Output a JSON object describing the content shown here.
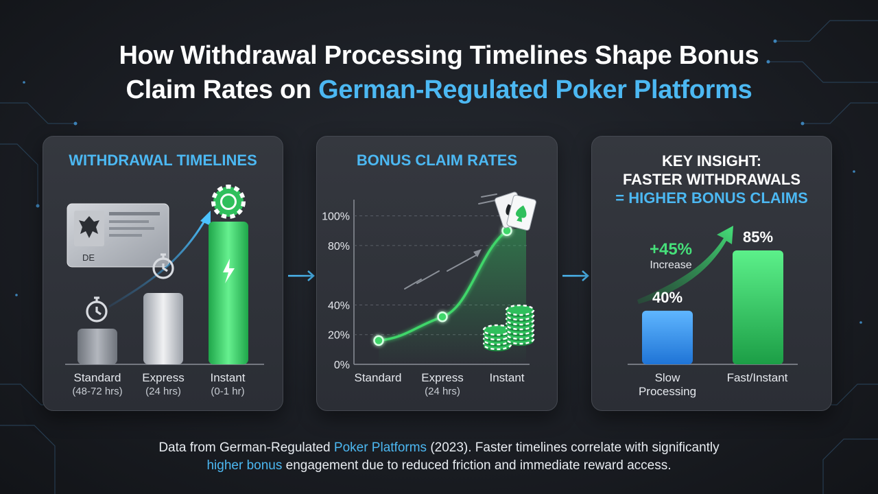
{
  "title": {
    "line1": "How Withdrawal Processing Timelines Shape Bonus",
    "line2_plain": "Claim Rates on ",
    "line2_highlight": "German-Regulated Poker Platforms"
  },
  "colors": {
    "accent_blue": "#4cb8f2",
    "accent_green": "#3fd66a",
    "panel_bg": "#31343b",
    "page_bg": "#1b1e24"
  },
  "panel_withdrawal": {
    "title": "WITHDRAWAL TIMELINES",
    "id_card_text": "DE",
    "icons": [
      "german-id-card-icon",
      "stopwatch-icon",
      "poker-chip-icon",
      "lightning-bolt-icon",
      "trend-arrow-icon"
    ],
    "chart_data": {
      "type": "bar",
      "categories": [
        "Standard",
        "Express",
        "Instant"
      ],
      "category_sublabels": [
        "(48-72 hrs)",
        "(24 hrs)",
        "(0-1 hr)"
      ],
      "values": [
        1,
        2,
        4
      ],
      "value_note": "relative bar heights (no axis shown)",
      "colors": [
        "#9aa0a8",
        "#d7dadf",
        "#3fd66a"
      ]
    }
  },
  "panel_claims": {
    "title": "BONUS CLAIM RATES",
    "icons": [
      "playing-cards-icon",
      "chip-stack-icon",
      "speed-lines-icon"
    ],
    "chart_data": {
      "type": "line",
      "categories": [
        "Standard",
        "Express",
        "Instant"
      ],
      "category_sublabels": [
        "",
        "(24 hrs)",
        ""
      ],
      "values": [
        16,
        32,
        90
      ],
      "y_tick_labels": [
        "0%",
        "20%",
        "40%",
        "80%",
        "100%"
      ],
      "y_tick_values": [
        0,
        20,
        40,
        80,
        100
      ],
      "ylim": [
        0,
        110
      ],
      "grid": true,
      "line_color": "#3fd66a"
    }
  },
  "panel_insight": {
    "title_line1": "KEY INSIGHT:",
    "title_line2": "FASTER WITHDRAWALS",
    "title_line3": "= HIGHER BONUS CLAIMS",
    "increase_value": "+45%",
    "increase_label": "Increase",
    "chart_data": {
      "type": "bar",
      "categories": [
        "Slow\nProcessing",
        "Fast/Instant"
      ],
      "category_lines": [
        [
          "Slow",
          "Processing"
        ],
        [
          "Fast/Instant"
        ]
      ],
      "values": [
        40,
        85
      ],
      "value_labels": [
        "40%",
        "85%"
      ],
      "colors": [
        "#3f9ff0",
        "#3fd66a"
      ],
      "ylim": [
        0,
        100
      ]
    }
  },
  "footer": {
    "line1_a": "Data from German-Regulated ",
    "line1_hl": "Poker Platforms",
    "line1_b": " (2023). Faster timelines correlate with significantly",
    "line2_hl": "higher bonus",
    "line2_b": " engagement due to reduced friction and immediate reward access."
  }
}
